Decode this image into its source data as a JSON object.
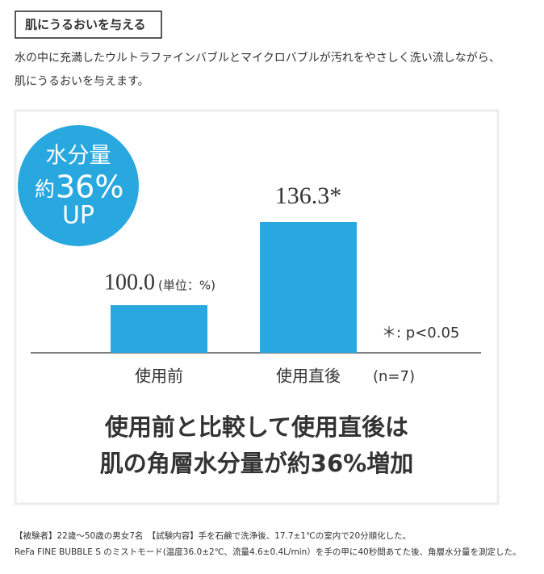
{
  "header": {
    "title": "肌にうるおいを与える"
  },
  "description": [
    "水の中に充満したウルトラファインバブルとマイクロバブルが汚れをやさしく洗い流しながら、",
    "肌にうるおいを与えます。"
  ],
  "chart_data": {
    "type": "bar",
    "badge": [
      "水分量",
      "約",
      "36%",
      "UP"
    ],
    "categories": [
      "使用前",
      "使用直後"
    ],
    "values": [
      100,
      136.3
    ],
    "value_labels": [
      "100.0",
      "136.3*"
    ],
    "unit_label": "(単位：%)",
    "note": "＊: p<0.05",
    "sample_size": "(n=7)",
    "color": "#29a8e0",
    "ylim": [
      79.2,
      140
    ],
    "conclusion": [
      "使用前と比較して使用直後は",
      "肌の角層水分量が約36%増加"
    ]
  },
  "footnotes": [
    "【被験者】22歳～50歳の男女7名　【試験内容】手を石鹸で洗浄後、17.7±1℃の室内で20分順化した。",
    "ReFa FINE BUBBLE S のミストモード(温度36.0±2℃、流量4.6±0.4L/min）を手の甲に40秒間あてた後、角層水分量を測定した。"
  ]
}
